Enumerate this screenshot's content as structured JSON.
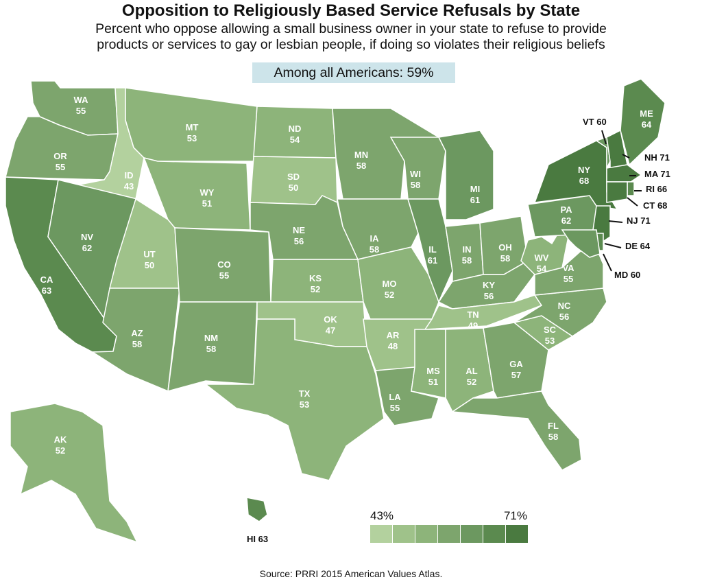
{
  "title": "Opposition to Religiously Based Service Refusals by State",
  "subtitle_line1": "Percent who oppose allowing a small business owner in your state to refuse to provide",
  "subtitle_line2": "products or services to gay or lesbian people, if doing so violates their religious beliefs",
  "overall": "Among all Americans: 59%",
  "source": "Source: PRRI 2015 American Values Atlas.",
  "legend": {
    "min_label": "43%",
    "max_label": "71%",
    "colors": [
      "#b3d19e",
      "#9fc28a",
      "#8db47a",
      "#7da56d",
      "#6c9860",
      "#5b8a4f",
      "#4a7a40"
    ]
  },
  "states": [
    {
      "abbr": "WA",
      "value": 55
    },
    {
      "abbr": "OR",
      "value": 55
    },
    {
      "abbr": "CA",
      "value": 63
    },
    {
      "abbr": "ID",
      "value": 43
    },
    {
      "abbr": "NV",
      "value": 62
    },
    {
      "abbr": "MT",
      "value": 53
    },
    {
      "abbr": "WY",
      "value": 51
    },
    {
      "abbr": "UT",
      "value": 50
    },
    {
      "abbr": "AZ",
      "value": 58
    },
    {
      "abbr": "CO",
      "value": 55
    },
    {
      "abbr": "NM",
      "value": 58
    },
    {
      "abbr": "ND",
      "value": 54
    },
    {
      "abbr": "SD",
      "value": 50
    },
    {
      "abbr": "NE",
      "value": 56
    },
    {
      "abbr": "KS",
      "value": 52
    },
    {
      "abbr": "OK",
      "value": 47
    },
    {
      "abbr": "TX",
      "value": 53
    },
    {
      "abbr": "MN",
      "value": 58
    },
    {
      "abbr": "IA",
      "value": 58
    },
    {
      "abbr": "MO",
      "value": 52
    },
    {
      "abbr": "AR",
      "value": 48
    },
    {
      "abbr": "LA",
      "value": 55
    },
    {
      "abbr": "WI",
      "value": 58
    },
    {
      "abbr": "IL",
      "value": 61
    },
    {
      "abbr": "MI",
      "value": 61
    },
    {
      "abbr": "IN",
      "value": 58
    },
    {
      "abbr": "OH",
      "value": 58
    },
    {
      "abbr": "KY",
      "value": 56
    },
    {
      "abbr": "TN",
      "value": 49
    },
    {
      "abbr": "MS",
      "value": 51
    },
    {
      "abbr": "AL",
      "value": 52
    },
    {
      "abbr": "GA",
      "value": 57
    },
    {
      "abbr": "FL",
      "value": 58
    },
    {
      "abbr": "SC",
      "value": 53
    },
    {
      "abbr": "NC",
      "value": 56
    },
    {
      "abbr": "VA",
      "value": 55
    },
    {
      "abbr": "WV",
      "value": 54
    },
    {
      "abbr": "PA",
      "value": 62
    },
    {
      "abbr": "NY",
      "value": 68
    },
    {
      "abbr": "VT",
      "value": 60
    },
    {
      "abbr": "NH",
      "value": 71
    },
    {
      "abbr": "ME",
      "value": 64
    },
    {
      "abbr": "MA",
      "value": 71
    },
    {
      "abbr": "RI",
      "value": 66
    },
    {
      "abbr": "CT",
      "value": 68
    },
    {
      "abbr": "NJ",
      "value": 71
    },
    {
      "abbr": "DE",
      "value": 64
    },
    {
      "abbr": "MD",
      "value": 60
    },
    {
      "abbr": "AK",
      "value": 52
    },
    {
      "abbr": "HI",
      "value": 63
    }
  ]
}
